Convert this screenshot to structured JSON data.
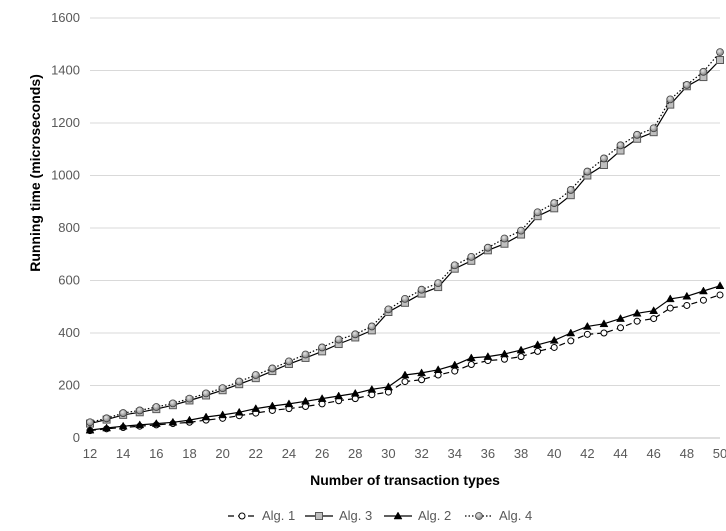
{
  "chart_data": {
    "type": "line",
    "title": "",
    "xlabel": "Number of transaction types",
    "ylabel": "Running time (microseconds)",
    "xlim": [
      12,
      50
    ],
    "ylim": [
      0,
      1600
    ],
    "x_ticks": [
      12,
      14,
      16,
      18,
      20,
      22,
      24,
      26,
      28,
      30,
      32,
      34,
      36,
      38,
      40,
      42,
      44,
      46,
      48,
      50
    ],
    "y_ticks": [
      0,
      200,
      400,
      600,
      800,
      1000,
      1200,
      1400,
      1600
    ],
    "grid": "horizontal",
    "legend_position": "bottom",
    "x": [
      12,
      13,
      14,
      15,
      16,
      17,
      18,
      19,
      20,
      21,
      22,
      23,
      24,
      25,
      26,
      27,
      28,
      29,
      30,
      31,
      32,
      33,
      34,
      35,
      36,
      37,
      38,
      39,
      40,
      41,
      42,
      43,
      44,
      45,
      46,
      47,
      48,
      49,
      50
    ],
    "series": [
      {
        "name": "Alg. 1",
        "marker": "open-circle",
        "line_style": "dashed",
        "color": "#000000",
        "values": [
          28,
          35,
          40,
          45,
          50,
          55,
          60,
          68,
          75,
          85,
          95,
          105,
          112,
          120,
          130,
          142,
          150,
          165,
          175,
          215,
          222,
          240,
          255,
          280,
          295,
          300,
          310,
          330,
          345,
          370,
          395,
          400,
          420,
          445,
          455,
          495,
          505,
          525,
          545
        ]
      },
      {
        "name": "Alg. 3",
        "marker": "square",
        "line_style": "solid",
        "color": "#000000",
        "values": [
          55,
          70,
          88,
          98,
          110,
          125,
          143,
          162,
          182,
          205,
          228,
          255,
          282,
          305,
          330,
          358,
          383,
          410,
          480,
          515,
          550,
          575,
          645,
          675,
          715,
          740,
          775,
          845,
          875,
          925,
          1000,
          1040,
          1095,
          1140,
          1165,
          1270,
          1340,
          1375,
          1440
        ]
      },
      {
        "name": "Alg. 2",
        "marker": "filled-triangle",
        "line_style": "solid",
        "color": "#000000",
        "values": [
          30,
          38,
          45,
          50,
          55,
          60,
          68,
          80,
          88,
          98,
          112,
          122,
          130,
          140,
          150,
          160,
          170,
          185,
          195,
          240,
          248,
          260,
          278,
          305,
          310,
          320,
          335,
          355,
          372,
          400,
          425,
          435,
          455,
          475,
          485,
          530,
          540,
          560,
          580
        ]
      },
      {
        "name": "Alg. 4",
        "marker": "gray-circle",
        "line_style": "dotted",
        "color": "#000000",
        "values": [
          60,
          75,
          95,
          105,
          118,
          132,
          150,
          170,
          190,
          215,
          240,
          265,
          292,
          318,
          345,
          375,
          395,
          425,
          490,
          530,
          565,
          590,
          658,
          690,
          725,
          760,
          790,
          860,
          895,
          945,
          1015,
          1065,
          1115,
          1155,
          1180,
          1290,
          1345,
          1395,
          1470
        ]
      }
    ]
  }
}
